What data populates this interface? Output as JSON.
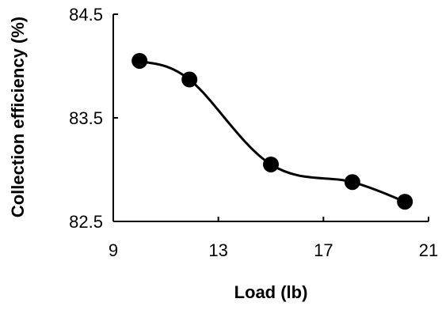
{
  "chart_data": {
    "type": "line",
    "title": "",
    "xlabel": "Load (lb)",
    "ylabel": "Collection efficiency (%)",
    "xlim": [
      9,
      21
    ],
    "ylim": [
      82.5,
      84.5
    ],
    "x_ticks": [
      "9",
      "13",
      "17",
      "21"
    ],
    "y_ticks": [
      "82.5",
      "83.5",
      "84.5"
    ],
    "grid": false,
    "legend": "none",
    "series": [
      {
        "x": [
          10.0,
          11.9,
          15.0,
          18.1,
          20.1
        ],
        "y": [
          84.05,
          83.87,
          83.05,
          82.88,
          82.69
        ],
        "color": "#000000",
        "marker": "circle",
        "line": "smooth"
      }
    ]
  }
}
